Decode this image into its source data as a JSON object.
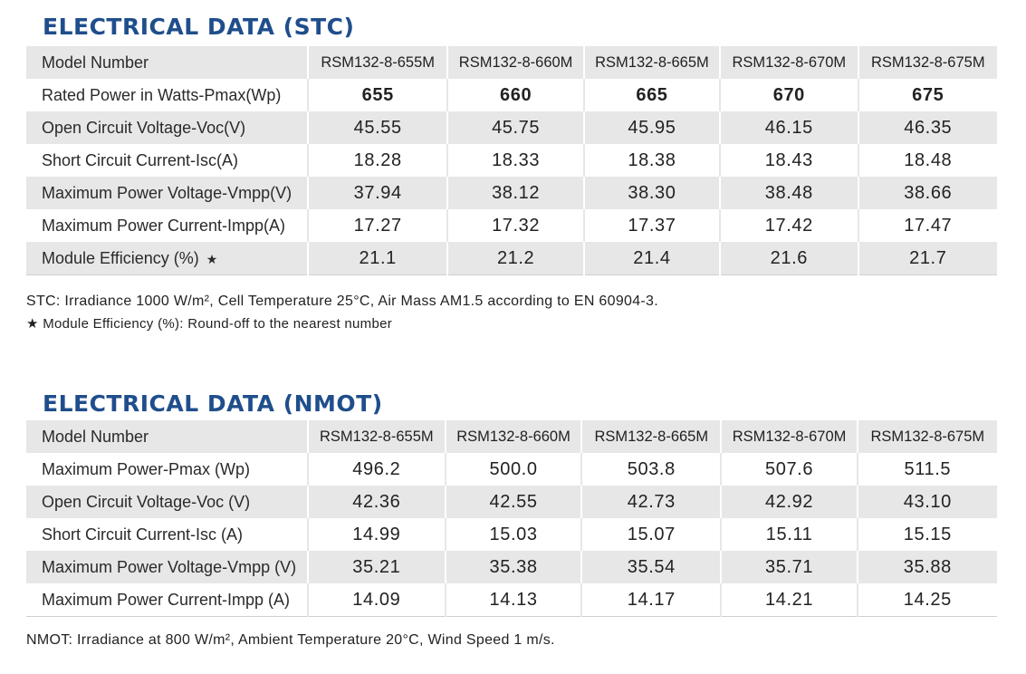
{
  "stc": {
    "title": "ELECTRICAL DATA (STC)",
    "rows": [
      {
        "label": "Model Number",
        "values": [
          "RSM132-8-655M",
          "RSM132-8-660M",
          "RSM132-8-665M",
          "RSM132-8-670M",
          "RSM132-8-675M"
        ]
      },
      {
        "label": "Rated Power in Watts-Pmax(Wp)",
        "values": [
          "655",
          "660",
          "665",
          "670",
          "675"
        ]
      },
      {
        "label": "Open Circuit Voltage-Voc(V)",
        "values": [
          "45.55",
          "45.75",
          "45.95",
          "46.15",
          "46.35"
        ]
      },
      {
        "label": "Short Circuit Current-Isc(A)",
        "values": [
          "18.28",
          "18.33",
          "18.38",
          "18.43",
          "18.48"
        ]
      },
      {
        "label": "Maximum Power Voltage-Vmpp(V)",
        "values": [
          "37.94",
          "38.12",
          "38.30",
          "38.48",
          "38.66"
        ]
      },
      {
        "label": "Maximum Power Current-Impp(A)",
        "values": [
          "17.27",
          "17.32",
          "17.37",
          "17.42",
          "17.47"
        ]
      },
      {
        "label": "Module Efficiency (%)",
        "star": "★",
        "values": [
          "21.1",
          "21.2",
          "21.4",
          "21.6",
          "21.7"
        ]
      }
    ],
    "note_1": "STC: Irradiance 1000 W/m², Cell Temperature 25°C, Air Mass AM1.5 according to EN 60904-3.",
    "note_2": "★ Module Efficiency (%): Round-off to the nearest number"
  },
  "nmot": {
    "title": "ELECTRICAL DATA (NMOT)",
    "rows": [
      {
        "label": "Model Number",
        "values": [
          "RSM132-8-655M",
          "RSM132-8-660M",
          "RSM132-8-665M",
          "RSM132-8-670M",
          "RSM132-8-675M"
        ]
      },
      {
        "label": "Maximum Power-Pmax (Wp)",
        "values": [
          "496.2",
          "500.0",
          "503.8",
          "507.6",
          "511.5"
        ]
      },
      {
        "label": "Open Circuit Voltage-Voc (V)",
        "values": [
          "42.36",
          "42.55",
          "42.73",
          "42.92",
          "43.10"
        ]
      },
      {
        "label": "Short Circuit Current-Isc (A)",
        "values": [
          "14.99",
          "15.03",
          "15.07",
          "15.11",
          "15.15"
        ]
      },
      {
        "label": "Maximum Power Voltage-Vmpp (V)",
        "values": [
          "35.21",
          "35.38",
          "35.54",
          "35.71",
          "35.88"
        ]
      },
      {
        "label": "Maximum Power Current-Impp (A)",
        "values": [
          "14.09",
          "14.13",
          "14.17",
          "14.21",
          "14.25"
        ]
      }
    ],
    "note": "NMOT: Irradiance at 800 W/m², Ambient Temperature 20°C, Wind Speed 1 m/s."
  },
  "colors": {
    "title": "#1f4e8c",
    "row_shade": "#e7e7e7",
    "text": "#222222"
  }
}
